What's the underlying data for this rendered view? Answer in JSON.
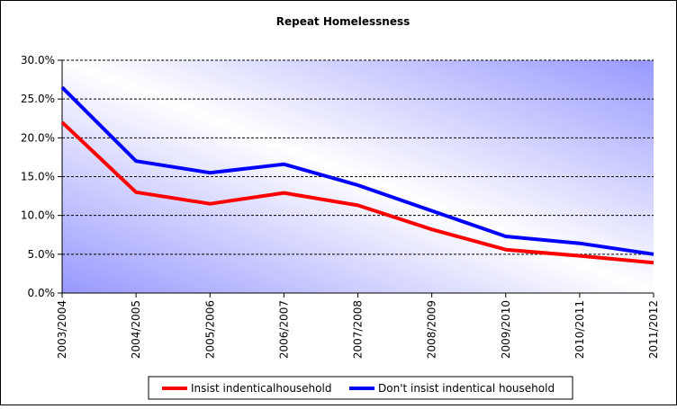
{
  "chart_data": {
    "type": "line",
    "title": "Repeat Homelessness",
    "xlabel": "",
    "ylabel": "",
    "categories": [
      "2003/2004",
      "2004/2005",
      "2005/2006",
      "2006/2007",
      "2007/2008",
      "2008/2009",
      "2009/2010",
      "2010/2011",
      "2011/2012"
    ],
    "y_ticks": [
      "0.0%",
      "5.0%",
      "10.0%",
      "15.0%",
      "20.0%",
      "25.0%",
      "30.0%"
    ],
    "ylim": [
      0,
      30
    ],
    "grid": "horizontal dashed",
    "legend_position": "bottom",
    "series": [
      {
        "name": "Insist indenticalhousehold",
        "color": "#ff0000",
        "values": [
          22.0,
          13.0,
          11.5,
          12.9,
          11.3,
          8.2,
          5.6,
          4.8,
          3.9
        ]
      },
      {
        "name": "Don't insist indentical household",
        "color": "#0000ff",
        "values": [
          26.5,
          17.0,
          15.5,
          16.6,
          13.9,
          10.6,
          7.3,
          6.4,
          5.0
        ]
      }
    ]
  }
}
